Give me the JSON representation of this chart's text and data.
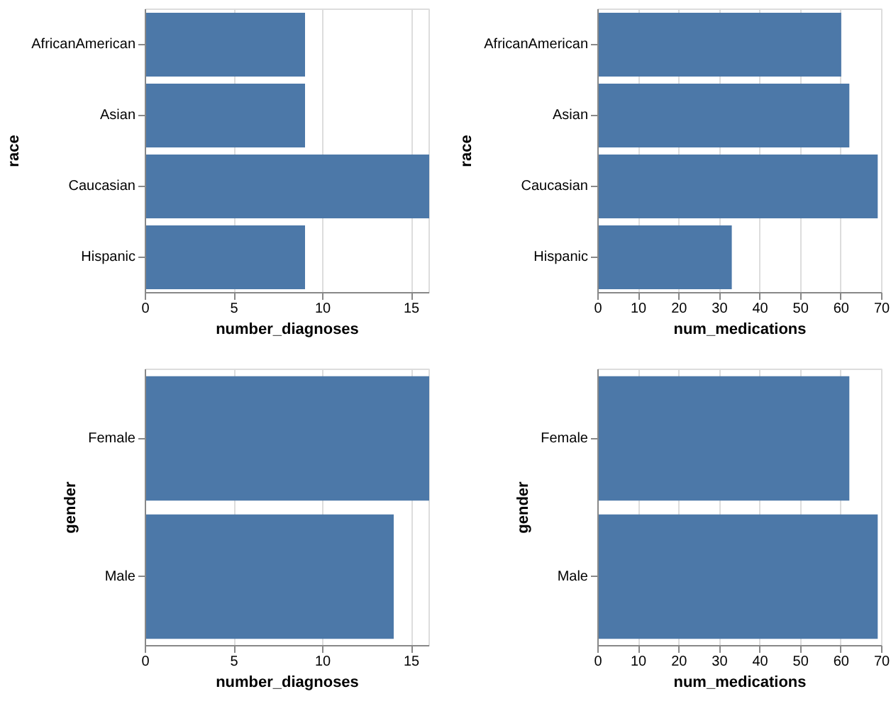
{
  "chart_data": [
    {
      "type": "bar",
      "orientation": "horizontal",
      "categories": [
        "AfricanAmerican",
        "Asian",
        "Caucasian",
        "Hispanic"
      ],
      "values": [
        9,
        9,
        16,
        9
      ],
      "color": "#4c78a8",
      "xlabel": "number_diagnoses",
      "ylabel": "race",
      "xlim": [
        0,
        16
      ],
      "xticks": [
        0,
        5,
        10,
        15
      ],
      "grid": "x"
    },
    {
      "type": "bar",
      "orientation": "horizontal",
      "categories": [
        "AfricanAmerican",
        "Asian",
        "Caucasian",
        "Hispanic"
      ],
      "values": [
        60,
        62,
        69,
        33
      ],
      "color": "#4c78a8",
      "xlabel": "num_medications",
      "ylabel": "race",
      "xlim": [
        0,
        70
      ],
      "xticks": [
        0,
        10,
        20,
        30,
        40,
        50,
        60,
        70
      ],
      "grid": "x"
    },
    {
      "type": "bar",
      "orientation": "horizontal",
      "categories": [
        "Female",
        "Male"
      ],
      "values": [
        16,
        14
      ],
      "color": "#4c78a8",
      "xlabel": "number_diagnoses",
      "ylabel": "gender",
      "xlim": [
        0,
        16
      ],
      "xticks": [
        0,
        5,
        10,
        15
      ],
      "grid": "x"
    },
    {
      "type": "bar",
      "orientation": "horizontal",
      "categories": [
        "Female",
        "Male"
      ],
      "values": [
        62,
        69
      ],
      "color": "#4c78a8",
      "xlabel": "num_medications",
      "ylabel": "gender",
      "xlim": [
        0,
        70
      ],
      "xticks": [
        0,
        10,
        20,
        30,
        40,
        50,
        60,
        70
      ],
      "grid": "x"
    }
  ]
}
